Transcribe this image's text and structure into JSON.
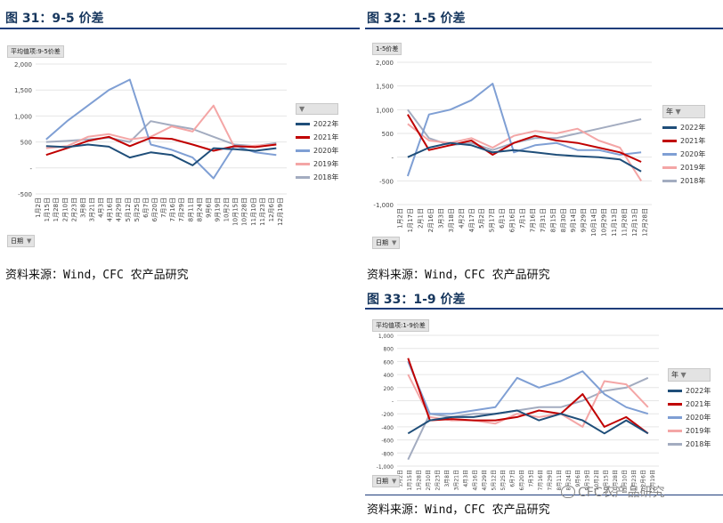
{
  "figures": {
    "fig31": {
      "title": "图 31：9-5 价差",
      "source": "资料来源：Wind，CFC 农产品研究"
    },
    "fig32": {
      "title": "图 32：1-5 价差",
      "source": "资料来源：Wind，CFC 农产品研究"
    },
    "fig33": {
      "title": "图 33：1-9 价差",
      "source": "资料来源：Wind，CFC 农产品研究"
    }
  },
  "watermark": "CFC农产品研究",
  "colors": {
    "2022年": "#1f4e79",
    "2021年": "#c00000",
    "2020年": "#7f9fd4",
    "2019年": "#f4a6a6",
    "2018年": "#a3acc0"
  },
  "chart_data": [
    {
      "id": "fig31",
      "type": "line",
      "badge": "平均值项:9-5价差",
      "field": "日期",
      "legend_title": "",
      "ylim": [
        -500,
        2000
      ],
      "yticks": [
        -500,
        0,
        500,
        1000,
        1500,
        2000
      ],
      "ytick_labels": [
        "-500",
        "-",
        "500",
        "1,000",
        "1,500",
        "2,000"
      ],
      "xtick_labels": [
        "1月2日",
        "1月15日",
        "1月28日",
        "2月10日",
        "2月23日",
        "3月8日",
        "3月21日",
        "4月3日",
        "4月16日",
        "4月29日",
        "5月12日",
        "5月25日",
        "6月7日",
        "6月20日",
        "7月3日",
        "7月16日",
        "7月29日",
        "8月11日",
        "8月24日",
        "9月6日",
        "9月19日",
        "10月2日",
        "10月15日",
        "10月28日",
        "11月10日",
        "11月23日",
        "12月6日",
        "12月19日"
      ],
      "x": [
        "1月",
        "2月",
        "3月",
        "4月",
        "5月",
        "6月",
        "7月",
        "8月",
        "9月",
        "10月",
        "11月",
        "12月"
      ],
      "series": [
        {
          "name": "2022年",
          "values": [
            420,
            400,
            450,
            410,
            200,
            300,
            250,
            50,
            380,
            360,
            330,
            380
          ]
        },
        {
          "name": "2021年",
          "values": [
            250,
            380,
            520,
            600,
            420,
            580,
            560,
            450,
            330,
            420,
            400,
            450
          ]
        },
        {
          "name": "2020年",
          "values": [
            550,
            900,
            1200,
            1500,
            1700,
            450,
            350,
            200,
            -200,
            430,
            300,
            250
          ]
        },
        {
          "name": "2019年",
          "values": [
            380,
            420,
            600,
            650,
            550,
            600,
            800,
            700,
            1200,
            400,
            430,
            450
          ]
        },
        {
          "name": "2018年",
          "values": [
            500,
            520,
            550,
            580,
            500,
            900,
            820,
            750,
            600,
            450,
            420,
            480
          ]
        }
      ]
    },
    {
      "id": "fig32",
      "type": "line",
      "badge": "1-5价差",
      "field": "日期",
      "legend_title": "年",
      "ylim": [
        -1000,
        2000
      ],
      "yticks": [
        -1000,
        -500,
        0,
        500,
        1000,
        1500,
        2000
      ],
      "ytick_labels": [
        "-1,000",
        "-500",
        "-",
        "500",
        "1,000",
        "1,500",
        "2,000"
      ],
      "xtick_labels": [
        "1月2日",
        "1月17日",
        "2月1日",
        "2月16日",
        "3月3日",
        "3月18日",
        "4月2日",
        "4月17日",
        "5月2日",
        "5月17日",
        "6月1日",
        "6月16日",
        "7月1日",
        "7月16日",
        "7月31日",
        "8月15日",
        "8月30日",
        "9月14日",
        "9月29日",
        "10月14日",
        "10月29日",
        "11月13日",
        "11月28日",
        "12月13日",
        "12月28日"
      ],
      "x": [
        "1月",
        "2月",
        "3月",
        "4月",
        "5月",
        "6月",
        "7月",
        "8月",
        "9月",
        "10月",
        "11月",
        "12月"
      ],
      "series": [
        {
          "name": "2022年",
          "values": [
            0,
            200,
            300,
            250,
            100,
            150,
            100,
            50,
            20,
            0,
            -50,
            -300
          ]
        },
        {
          "name": "2021年",
          "values": [
            900,
            150,
            250,
            350,
            50,
            300,
            450,
            350,
            300,
            200,
            100,
            -100
          ]
        },
        {
          "name": "2020年",
          "values": [
            -400,
            900,
            1000,
            1200,
            1550,
            100,
            250,
            300,
            150,
            150,
            50,
            100
          ]
        },
        {
          "name": "2019年",
          "values": [
            700,
            350,
            300,
            400,
            200,
            450,
            550,
            500,
            600,
            350,
            200,
            -500
          ]
        },
        {
          "name": "2018年",
          "values": [
            1000,
            400,
            250,
            300,
            150,
            300,
            400,
            400,
            500,
            600,
            700,
            800
          ]
        }
      ]
    },
    {
      "id": "fig33",
      "type": "line",
      "badge": "平均值项:1-9价差",
      "field": "日期",
      "legend_title": "年",
      "ylim": [
        -1000,
        1000
      ],
      "yticks": [
        -1000,
        -800,
        -600,
        -400,
        -200,
        0,
        200,
        400,
        600,
        800,
        1000
      ],
      "ytick_labels": [
        "-1,000",
        "-800",
        "-600",
        "-400",
        "-200",
        "-",
        "200",
        "400",
        "600",
        "800",
        "1,000"
      ],
      "xtick_labels": [
        "1月2日",
        "1月15日",
        "1月28日",
        "2月10日",
        "2月23日",
        "3月8日",
        "3月21日",
        "4月3日",
        "4月16日",
        "4月29日",
        "5月12日",
        "5月25日",
        "6月7日",
        "6月20日",
        "7月3日",
        "7月16日",
        "7月29日",
        "8月11日",
        "8月24日",
        "9月6日",
        "9月19日",
        "10月2日",
        "10月15日",
        "10月28日",
        "11月10日",
        "11月23日",
        "12月6日",
        "12月19日"
      ],
      "x": [
        "1月",
        "2月",
        "3月",
        "4月",
        "5月",
        "6月",
        "7月",
        "8月",
        "9月",
        "10月",
        "11月",
        "12月"
      ],
      "series": [
        {
          "name": "2022年",
          "values": [
            -500,
            -300,
            -250,
            -250,
            -200,
            -150,
            -300,
            -200,
            -300,
            -500,
            -300,
            -500
          ]
        },
        {
          "name": "2021年",
          "values": [
            650,
            -300,
            -280,
            -300,
            -300,
            -250,
            -150,
            -200,
            100,
            -400,
            -250,
            -500
          ]
        },
        {
          "name": "2020年",
          "values": [
            600,
            -200,
            -200,
            -150,
            -100,
            350,
            200,
            300,
            450,
            100,
            -100,
            -200
          ]
        },
        {
          "name": "2019年",
          "values": [
            400,
            -250,
            -300,
            -300,
            -350,
            -200,
            -250,
            -200,
            -400,
            300,
            250,
            -100
          ]
        },
        {
          "name": "2018年",
          "values": [
            -900,
            -200,
            -250,
            -200,
            -200,
            -150,
            -100,
            -100,
            0,
            150,
            200,
            350
          ]
        }
      ]
    }
  ]
}
